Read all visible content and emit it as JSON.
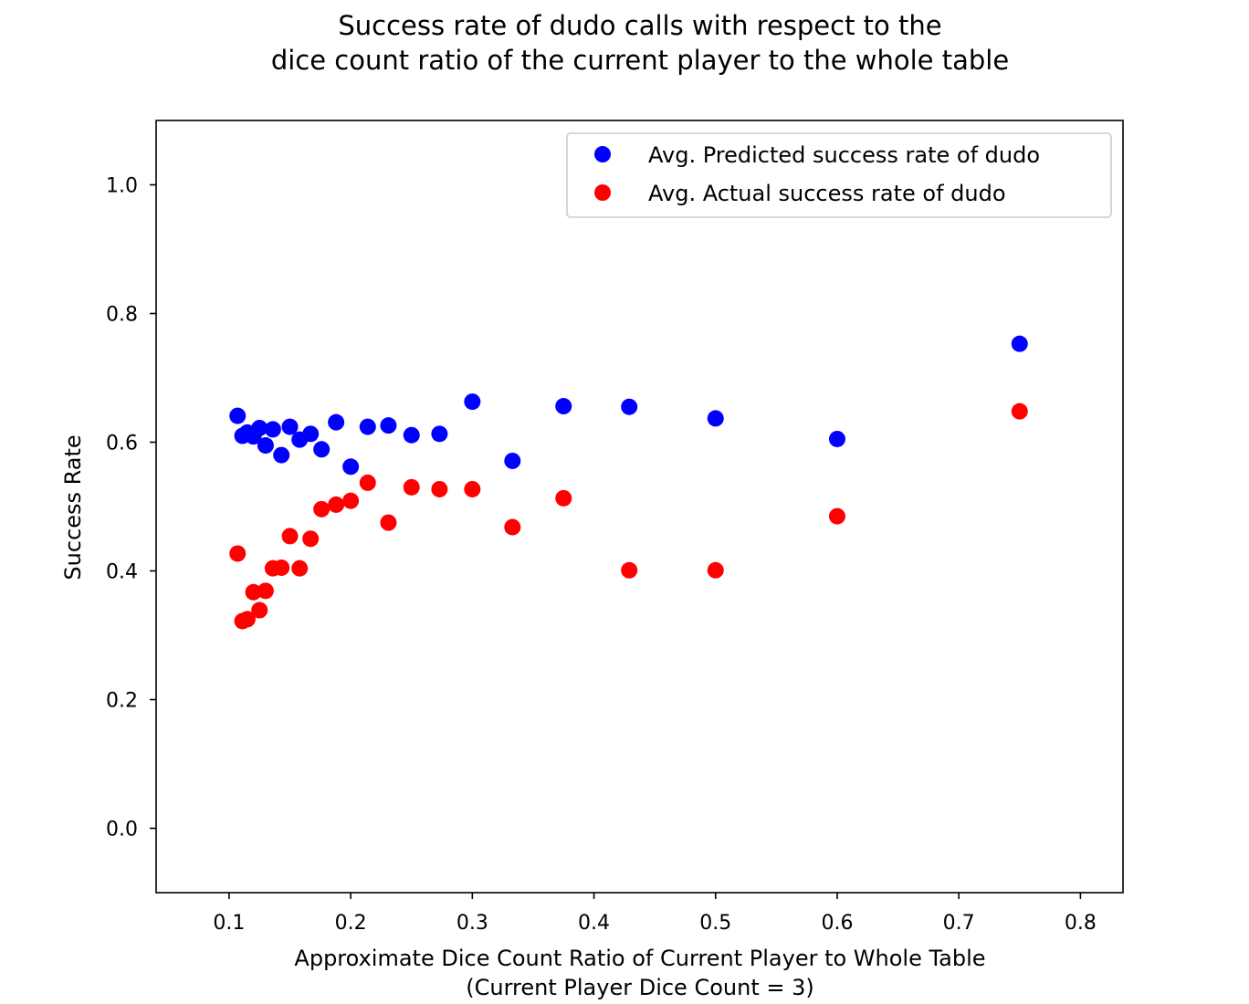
{
  "chart_data": {
    "type": "scatter",
    "title": [
      "Success rate of dudo calls with respect to the",
      "dice count ratio of the current player to the whole table"
    ],
    "xlabel": [
      "Approximate Dice Count Ratio of Current Player to Whole Table",
      "(Current Player Dice Count = 3)"
    ],
    "ylabel": "Success Rate",
    "xlim": [
      0.04,
      0.835
    ],
    "ylim": [
      -0.1,
      1.1
    ],
    "xticks": [
      0.1,
      0.2,
      0.3,
      0.4,
      0.5,
      0.6,
      0.7,
      0.8
    ],
    "xtick_labels": [
      "0.1",
      "0.2",
      "0.3",
      "0.4",
      "0.5",
      "0.6",
      "0.7",
      "0.8"
    ],
    "yticks": [
      0.0,
      0.2,
      0.4,
      0.6,
      0.8,
      1.0
    ],
    "ytick_labels": [
      "0.0",
      "0.2",
      "0.4",
      "0.6",
      "0.8",
      "1.0"
    ],
    "grid": false,
    "legend_position": "top-right",
    "series": [
      {
        "name": "Avg. Predicted success rate of dudo",
        "color": "#0000ff",
        "x": [
          0.107,
          0.111,
          0.115,
          0.12,
          0.125,
          0.13,
          0.136,
          0.143,
          0.15,
          0.158,
          0.167,
          0.176,
          0.188,
          0.2,
          0.214,
          0.231,
          0.25,
          0.273,
          0.3,
          0.333,
          0.375,
          0.429,
          0.5,
          0.6,
          0.75
        ],
        "y": [
          0.641,
          0.61,
          0.615,
          0.609,
          0.622,
          0.595,
          0.62,
          0.58,
          0.624,
          0.604,
          0.613,
          0.589,
          0.631,
          0.562,
          0.624,
          0.626,
          0.611,
          0.613,
          0.663,
          0.571,
          0.656,
          0.655,
          0.637,
          0.605,
          0.753
        ]
      },
      {
        "name": "Avg. Actual success rate of dudo",
        "color": "#ff0000",
        "x": [
          0.107,
          0.111,
          0.115,
          0.12,
          0.125,
          0.13,
          0.136,
          0.143,
          0.15,
          0.158,
          0.167,
          0.176,
          0.188,
          0.2,
          0.214,
          0.231,
          0.25,
          0.273,
          0.3,
          0.333,
          0.375,
          0.429,
          0.5,
          0.6,
          0.75
        ],
        "y": [
          0.427,
          0.322,
          0.325,
          0.367,
          0.339,
          0.369,
          0.404,
          0.405,
          0.454,
          0.404,
          0.45,
          0.496,
          0.503,
          0.509,
          0.537,
          0.475,
          0.53,
          0.527,
          0.527,
          0.468,
          0.513,
          0.401,
          0.401,
          0.485,
          0.648
        ]
      }
    ]
  }
}
